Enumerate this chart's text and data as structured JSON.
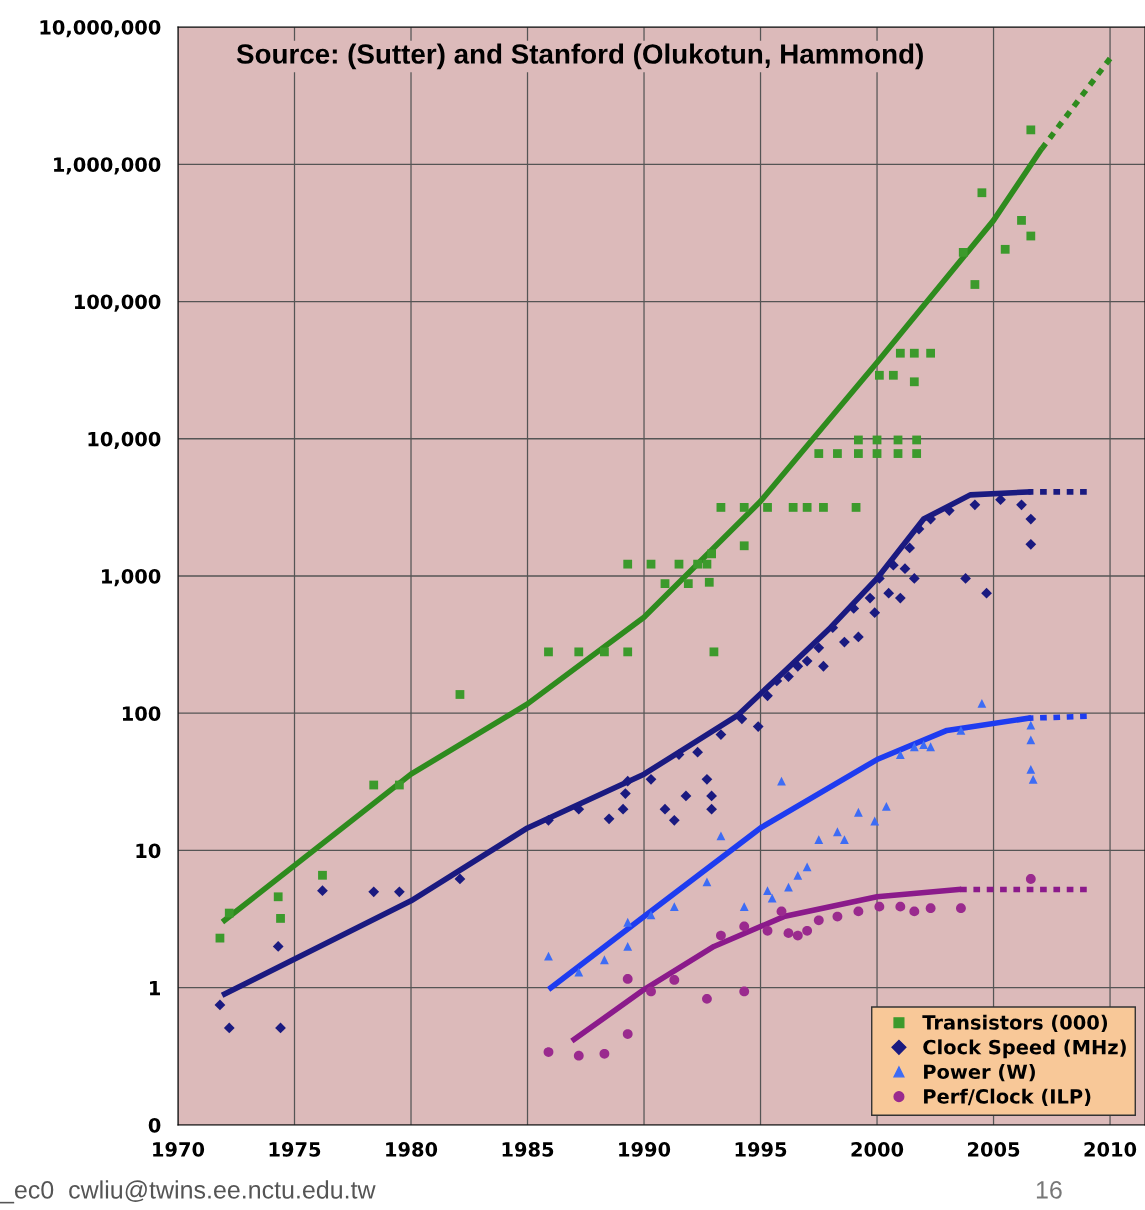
{
  "chart_data": {
    "type": "scatter",
    "annotations": [
      "Source: (Sutter) and Stanford (Olukotun, Hammond)",
      "_ec0  cwliu@twins.ee.nctu.edu.tw",
      "16"
    ],
    "xlim": [
      1970,
      2011.5
    ],
    "xticks": [
      1970,
      1975,
      1980,
      1985,
      1990,
      1995,
      2000,
      2005,
      2010
    ],
    "log": "y",
    "ylim": [
      0.1,
      10000000
    ],
    "yticks": [
      {
        "value": 0.1,
        "label": "0"
      },
      1,
      10,
      100,
      {
        "value": 1000,
        "label": "1,000"
      },
      {
        "value": 10000,
        "label": "10,000"
      },
      {
        "value": 100000,
        "label": "100,000"
      },
      {
        "value": 1000000,
        "label": "1,000,000"
      },
      {
        "value": 10000000,
        "label": "10,000,000"
      }
    ],
    "grid": true,
    "legend": "bottom right",
    "series": [
      {
        "name": "Transistors (000)",
        "marker": "square",
        "color": "#3c9a2c",
        "x": [
          1971.8,
          1972.2,
          1974.3,
          1974.4,
          1976.2,
          1978.4,
          1979.5,
          1982.1,
          1985.9,
          1987.2,
          1988.3,
          1989.3,
          1989.3,
          1990.3,
          1990.9,
          1991.5,
          1991.9,
          1992.3,
          1992.7,
          1992.9,
          1992.8,
          1993.0,
          1993.3,
          1994.3,
          1994.3,
          1995.3,
          1996.4,
          1997.0,
          1997.7,
          1999.1,
          1997.5,
          1998.3,
          1999.2,
          2000.0,
          2000.9,
          2001.7,
          1999.2,
          2000.0,
          2000.9,
          2001.7,
          2000.1,
          2000.7,
          2001.0,
          2001.6,
          2002.3,
          2001.6,
          2003.7,
          2004.2,
          2004.5,
          2005.5,
          2006.2,
          2006.6,
          2006.6
        ],
        "values": [
          2.3,
          3.5,
          4.6,
          3.2,
          6.6,
          30,
          30,
          137,
          280,
          280,
          280,
          280,
          1220,
          1220,
          880,
          1220,
          880,
          1220,
          1220,
          1450,
          900,
          280,
          3160,
          1660,
          3160,
          3160,
          3160,
          3160,
          3160,
          3160,
          7800,
          7800,
          7800,
          7800,
          7800,
          7800,
          9800,
          9800,
          9800,
          9800,
          29000,
          29000,
          42000,
          42000,
          42000,
          26000,
          228000,
          133000,
          620000,
          240000,
          390000,
          300000,
          1780000
        ]
      },
      {
        "name": "Clock Speed (MHz)",
        "marker": "diamond",
        "color": "#1a1a80",
        "x": [
          1971.8,
          1972.2,
          1974.3,
          1974.4,
          1976.2,
          1978.4,
          1979.5,
          1982.1,
          1985.9,
          1987.2,
          1988.5,
          1989.1,
          1989.2,
          1989.3,
          1990.3,
          1990.9,
          1991.3,
          1991.8,
          1991.5,
          1992.3,
          1992.7,
          1992.9,
          1992.9,
          1993.3,
          1994.2,
          1994.9,
          1995.3,
          1995.7,
          1996.2,
          1996.6,
          1997.0,
          1997.5,
          1997.7,
          1998.1,
          1998.6,
          1999.0,
          1999.2,
          1999.7,
          1999.9,
          2000.1,
          2000.5,
          2000.7,
          2001.0,
          2001.2,
          2001.4,
          2001.6,
          2001.8,
          2002.3,
          2003.1,
          2003.8,
          2004.2,
          2004.7,
          2005.3,
          2006.2,
          2006.6,
          2006.6
        ],
        "values": [
          0.75,
          0.51,
          2.0,
          0.51,
          5.1,
          5,
          5,
          6.2,
          16.6,
          20,
          17,
          20,
          26,
          32,
          33,
          20,
          16.6,
          25,
          50,
          52,
          33,
          25,
          20,
          70,
          91,
          80,
          134,
          172,
          185,
          220,
          240,
          300,
          220,
          420,
          330,
          580,
          360,
          690,
          540,
          960,
          750,
          1200,
          690,
          1130,
          1600,
          960,
          2200,
          2600,
          3000,
          960,
          3300,
          750,
          3600,
          3300,
          2600,
          1700
        ]
      },
      {
        "name": "Power (W)",
        "marker": "triangle",
        "color": "#3d6cf5",
        "x": [
          1985.9,
          1987.2,
          1988.3,
          1989.3,
          1989.3,
          1990.3,
          1991.3,
          1992.7,
          1993.3,
          1994.3,
          1995.3,
          1995.5,
          1995.9,
          1996.2,
          1996.6,
          1997.0,
          1997.5,
          1998.3,
          1998.6,
          1999.2,
          1999.9,
          2000.4,
          2001.0,
          2001.6,
          2002.0,
          2002.3,
          2003.6,
          2004.5,
          2006.6,
          2006.6,
          2006.6,
          2006.7
        ],
        "values": [
          1.7,
          1.3,
          1.6,
          2.0,
          3.0,
          3.4,
          3.9,
          5.9,
          12.8,
          3.9,
          5.1,
          4.5,
          32,
          5.4,
          6.6,
          7.6,
          12,
          13.7,
          12,
          19,
          16.4,
          21,
          50,
          57,
          59,
          57,
          75,
          118,
          82,
          64,
          39,
          33
        ]
      },
      {
        "name": "Perf/Clock (ILP)",
        "marker": "circle",
        "color": "#9a2a8e",
        "x": [
          1985.9,
          1987.2,
          1988.3,
          1989.3,
          1989.3,
          1990.3,
          1991.3,
          1992.7,
          1993.3,
          1994.3,
          1994.3,
          1995.3,
          1995.9,
          1996.2,
          1996.6,
          1997.0,
          1997.5,
          1998.3,
          1999.2,
          2000.1,
          2001.0,
          2001.6,
          2002.3,
          2003.6,
          2006.6
        ],
        "values": [
          0.34,
          0.32,
          0.33,
          0.46,
          1.16,
          0.94,
          1.14,
          0.83,
          2.4,
          2.8,
          0.94,
          2.6,
          3.6,
          2.5,
          2.4,
          2.6,
          3.1,
          3.3,
          3.6,
          3.9,
          3.9,
          3.6,
          3.8,
          3.8,
          6.2
        ]
      },
      {
        "type": "line",
        "line_style": "solid",
        "color": "#2e8b1e",
        "x": [
          1972,
          1980,
          1985,
          1990,
          1995,
          2000,
          2005,
          2007
        ],
        "values": [
          3.1,
          36,
          117,
          500,
          3500,
          36000,
          390000,
          1250000
        ]
      },
      {
        "type": "line",
        "line_style": "dotted",
        "color": "#2e8b1e",
        "x": [
          2007,
          2010
        ],
        "values": [
          1250000,
          5900000
        ]
      },
      {
        "type": "line",
        "line_style": "solid",
        "color": "#1a1a80",
        "x": [
          1972,
          1980,
          1985,
          1990,
          1994,
          1996,
          1998,
          2000,
          2002,
          2004,
          2006.5
        ],
        "values": [
          0.9,
          4.3,
          14.6,
          36,
          96,
          200,
          420,
          960,
          2600,
          3900,
          4100
        ]
      },
      {
        "type": "line",
        "line_style": "dotted",
        "color": "#1a1a80",
        "x": [
          2006.5,
          2009
        ],
        "values": [
          4100,
          4100
        ]
      },
      {
        "type": "line",
        "line_style": "solid",
        "color": "#1e3cf0",
        "x": [
          1986,
          1990,
          1995,
          2000,
          2003,
          2006.5
        ],
        "values": [
          1.0,
          3.3,
          14.6,
          46,
          75,
          92
        ]
      },
      {
        "type": "line",
        "line_style": "dotted",
        "color": "#1e3cf0",
        "x": [
          2006.5,
          2009
        ],
        "values": [
          92,
          95
        ]
      },
      {
        "type": "line",
        "line_style": "solid",
        "color": "#8b1a8b",
        "x": [
          1987,
          1990,
          1993,
          1996,
          2000,
          2003.5
        ],
        "values": [
          0.42,
          0.97,
          2.0,
          3.3,
          4.6,
          5.2
        ]
      },
      {
        "type": "line",
        "line_style": "dotted",
        "color": "#8b1a8b",
        "x": [
          2003.5,
          2009
        ],
        "values": [
          5.2,
          5.2
        ]
      }
    ]
  }
}
